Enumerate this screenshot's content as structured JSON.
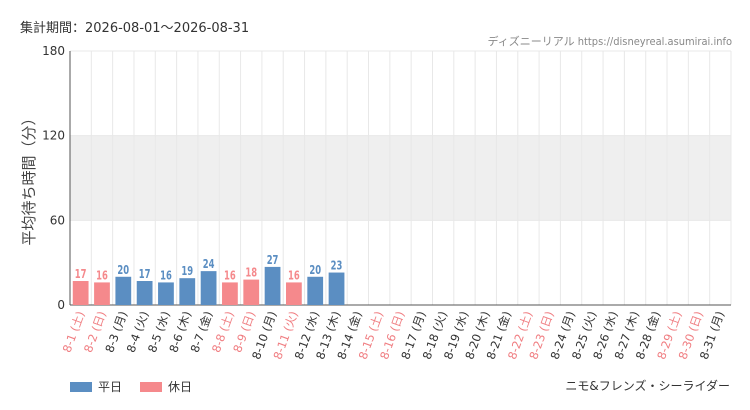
{
  "header": {
    "period_label": "集計期間：2026-08-01～2026-08-31",
    "source": "ディズニーリアル https://disneyreal.asumirai.info"
  },
  "footer": {
    "attraction_name": "ニモ&フレンズ・シーライダー"
  },
  "colors": {
    "weekday": "#5b8ec2",
    "holiday": "#f5898c",
    "weekday_label": "#333333",
    "holiday_label": "#f07e82",
    "band": "#efefef",
    "grid": "#e8e8e8",
    "axis": "#555555"
  },
  "chart_data": {
    "type": "bar",
    "ylabel": "平均待ち時間（分）",
    "ylim": [
      0,
      180
    ],
    "yticks": [
      "0",
      "60",
      "120",
      "180"
    ],
    "legend": [
      {
        "key": "weekday",
        "label": "平日"
      },
      {
        "key": "holiday",
        "label": "休日"
      }
    ],
    "categories": [
      "8-1 (土)",
      "8-2 (日)",
      "8-3 (月)",
      "8-4 (火)",
      "8-5 (水)",
      "8-6 (木)",
      "8-7 (金)",
      "8-8 (土)",
      "8-9 (日)",
      "8-10 (月)",
      "8-11 (火)",
      "8-12 (水)",
      "8-13 (木)",
      "8-14 (金)",
      "8-15 (土)",
      "8-16 (日)",
      "8-17 (月)",
      "8-18 (火)",
      "8-19 (水)",
      "8-20 (木)",
      "8-21 (金)",
      "8-22 (土)",
      "8-23 (日)",
      "8-24 (月)",
      "8-25 (火)",
      "8-26 (水)",
      "8-27 (木)",
      "8-28 (金)",
      "8-29 (土)",
      "8-30 (日)",
      "8-31 (月)"
    ],
    "day_type": [
      "holiday",
      "holiday",
      "weekday",
      "weekday",
      "weekday",
      "weekday",
      "weekday",
      "holiday",
      "holiday",
      "weekday",
      "holiday",
      "weekday",
      "weekday",
      "weekday",
      "holiday",
      "holiday",
      "weekday",
      "weekday",
      "weekday",
      "weekday",
      "weekday",
      "holiday",
      "holiday",
      "weekday",
      "weekday",
      "weekday",
      "weekday",
      "weekday",
      "holiday",
      "holiday",
      "weekday"
    ],
    "values": [
      17,
      16,
      20,
      17,
      16,
      19,
      24,
      16,
      18,
      27,
      16,
      20,
      23,
      null,
      null,
      null,
      null,
      null,
      null,
      null,
      null,
      null,
      null,
      null,
      null,
      null,
      null,
      null,
      null,
      null,
      null
    ]
  }
}
